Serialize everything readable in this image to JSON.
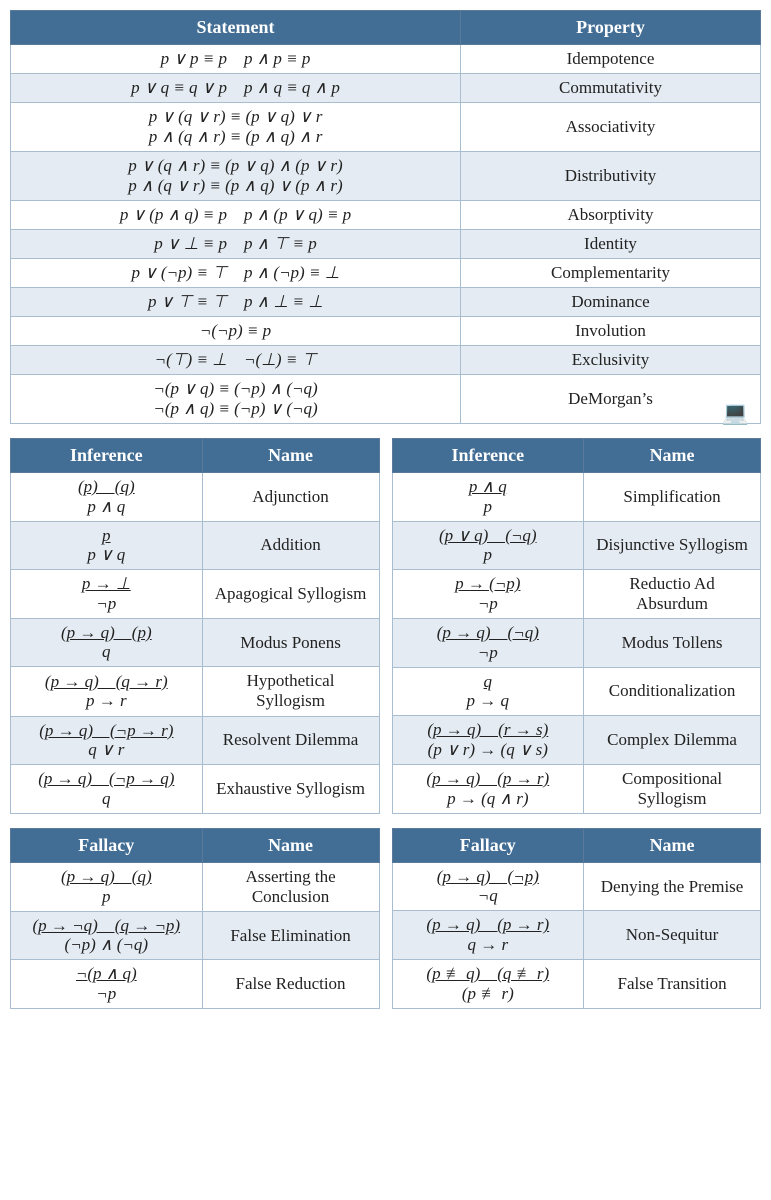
{
  "colors": {
    "header_bg": "#426d94",
    "header_fg": "#ffffff",
    "border": "#5b7a9a",
    "cell_border": "#a8bdd0",
    "alt_row": "#e4ebf2",
    "row": "#ffffff"
  },
  "top_table": {
    "headers": [
      "Statement",
      "Property"
    ],
    "rows": [
      {
        "stmt": [
          "p ∨ p ≡ p p ∧ p ≡ p"
        ],
        "prop": "Idempotence"
      },
      {
        "stmt": [
          "p ∨ q ≡ q ∨ p p ∧ q ≡ q ∧ p"
        ],
        "prop": "Commutativity"
      },
      {
        "stmt": [
          "p ∨ (q ∨ r) ≡ (p ∨ q) ∨ r",
          "p ∧ (q ∧ r) ≡ (p ∧ q) ∧ r"
        ],
        "prop": "Associativity"
      },
      {
        "stmt": [
          "p ∨ (q ∧ r) ≡ (p ∨ q) ∧ (p ∨ r)",
          "p ∧ (q ∨ r) ≡ (p ∧ q) ∨ (p ∧ r)"
        ],
        "prop": "Distributivity"
      },
      {
        "stmt": [
          "p ∨ (p ∧ q) ≡ p p ∧ (p ∨ q) ≡ p"
        ],
        "prop": "Absorptivity"
      },
      {
        "stmt": [
          "p ∨ ⊥ ≡ p p ∧ ⊤ ≡ p"
        ],
        "prop": "Identity"
      },
      {
        "stmt": [
          "p ∨ (¬p) ≡ ⊤ p ∧ (¬p) ≡ ⊥"
        ],
        "prop": "Complementarity"
      },
      {
        "stmt": [
          "p ∨ ⊤ ≡ ⊤ p ∧ ⊥ ≡ ⊥"
        ],
        "prop": "Dominance"
      },
      {
        "stmt": [
          "¬(¬p) ≡ p"
        ],
        "prop": "Involution"
      },
      {
        "stmt": [
          "¬(⊤) ≡ ⊥ ¬(⊥) ≡ ⊤"
        ],
        "prop": "Exclusivity"
      },
      {
        "stmt": [
          "¬(p ∨ q) ≡ (¬p) ∧ (¬q)",
          "¬(p ∧ q) ≡ (¬p) ∨ (¬q)"
        ],
        "prop": "DeMorgan’s"
      }
    ]
  },
  "inference_left": {
    "headers": [
      "Inference",
      "Name"
    ],
    "rows": [
      {
        "num": "(p) (q)",
        "den": "p ∧ q",
        "name": "Adjunction"
      },
      {
        "num": "p",
        "den": "p ∨ q",
        "name": "Addition"
      },
      {
        "num": "p → ⊥",
        "den": "¬p",
        "name": "Apagogical Syllogism"
      },
      {
        "num": "(p → q) (p)",
        "den": "q",
        "name": "Modus Ponens"
      },
      {
        "num": "(p → q) (q → r)",
        "den": "p → r",
        "name": "Hypothetical Syllogism"
      },
      {
        "num": "(p → q) (¬p → r)",
        "den": "q ∨ r",
        "name": "Resolvent Dilemma"
      },
      {
        "num": "(p → q) (¬p → q)",
        "den": "q",
        "name": "Exhaustive Syllogism"
      }
    ]
  },
  "inference_right": {
    "headers": [
      "Inference",
      "Name"
    ],
    "rows": [
      {
        "num": "p ∧ q",
        "den": "p",
        "name": "Simplification"
      },
      {
        "num": "(p ∨ q) (¬q)",
        "den": "p",
        "name": "Disjunctive Syllogism"
      },
      {
        "num": "p → (¬p)",
        "den": "¬p",
        "name": "Reductio Ad Absurdum"
      },
      {
        "num": "(p → q) (¬q)",
        "den": "¬p",
        "name": "Modus Tollens"
      },
      {
        "num": "q",
        "den": "p → q",
        "name": "Conditionalization"
      },
      {
        "num": "(p → q) (r → s)",
        "den": "(p ∨ r) → (q ∨ s)",
        "name": "Complex Dilemma"
      },
      {
        "num": "(p → q) (p → r)",
        "den": "p → (q ∧ r)",
        "name": "Compositional Syllogism"
      }
    ]
  },
  "fallacy_left": {
    "headers": [
      "Fallacy",
      "Name"
    ],
    "rows": [
      {
        "num": "(p → q) (q)",
        "den": "p",
        "name": "Asserting the Conclusion"
      },
      {
        "num": "(p → ¬q) (q → ¬p)",
        "den": "(¬p) ∧ (¬q)",
        "name": "False Elimination"
      },
      {
        "num": "¬(p ∧ q)",
        "den": "¬p",
        "name": "False Reduction"
      }
    ]
  },
  "fallacy_right": {
    "headers": [
      "Fallacy",
      "Name"
    ],
    "rows": [
      {
        "num": "(p → q) (¬p)",
        "den": "¬q",
        "name": "Denying the Premise"
      },
      {
        "num": "(p → q) (p → r)",
        "den": "q → r",
        "name": "Non-Sequitur"
      },
      {
        "num": "(p ≢ q) (q ≢ r)",
        "den": "(p ≢ r)",
        "name": "False Transition"
      }
    ]
  }
}
